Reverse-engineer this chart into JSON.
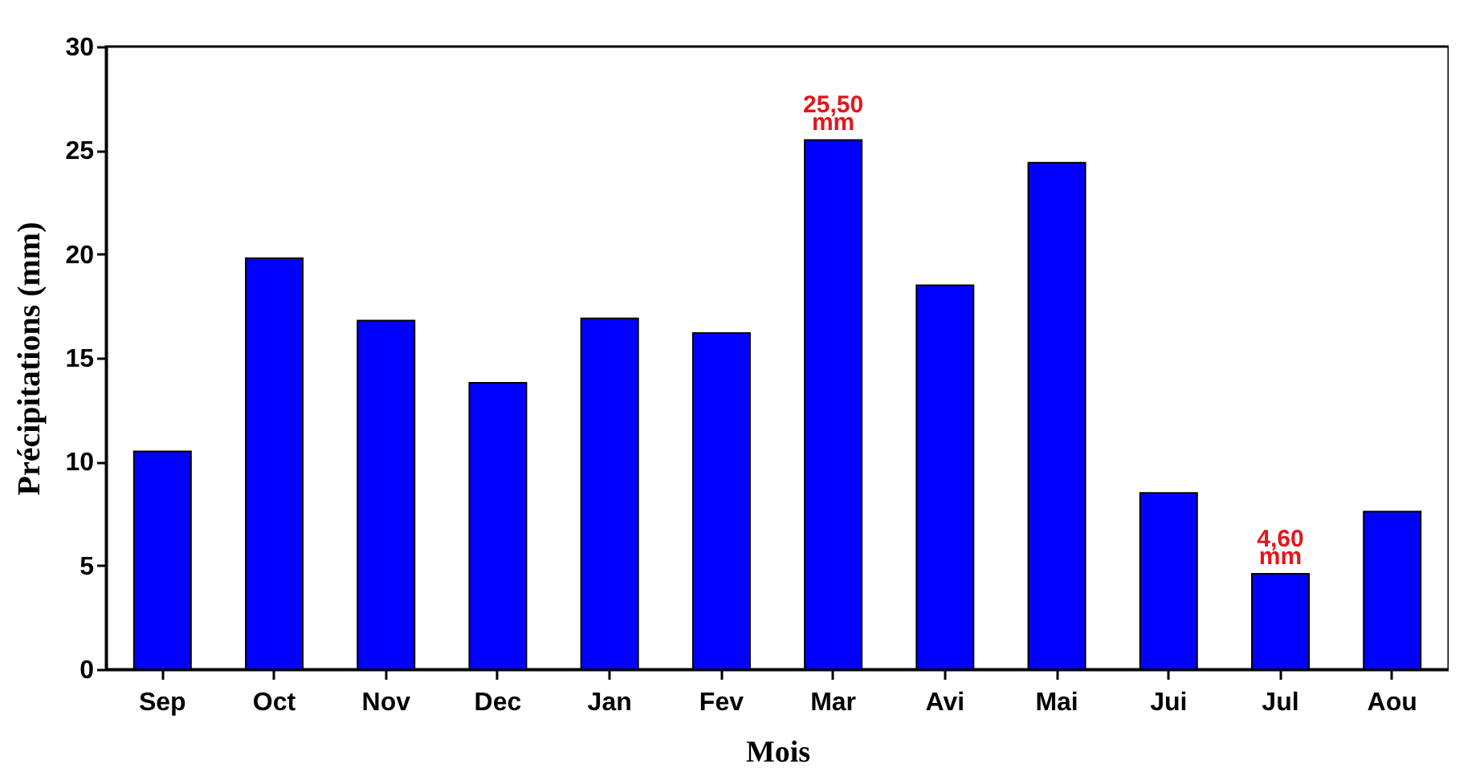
{
  "chart_data": {
    "type": "bar",
    "xlabel": "Mois",
    "ylabel": "Précipitations (mm)",
    "categories": [
      "Sep",
      "Oct",
      "Nov",
      "Dec",
      "Jan",
      "Fev",
      "Mar",
      "Avi",
      "Mai",
      "Jui",
      "Jul",
      "Aou"
    ],
    "values": [
      10.5,
      19.8,
      16.8,
      13.8,
      16.9,
      16.2,
      25.5,
      18.5,
      24.4,
      8.5,
      4.6,
      7.6
    ],
    "value_labels": [
      null,
      null,
      null,
      null,
      null,
      null,
      "25,50 mm",
      null,
      null,
      null,
      "4,60 mm",
      null
    ],
    "color": "#0000ff",
    "ylim": [
      0,
      30
    ],
    "yticks": [
      0,
      5,
      10,
      15,
      20,
      25,
      30
    ],
    "grid": false
  }
}
